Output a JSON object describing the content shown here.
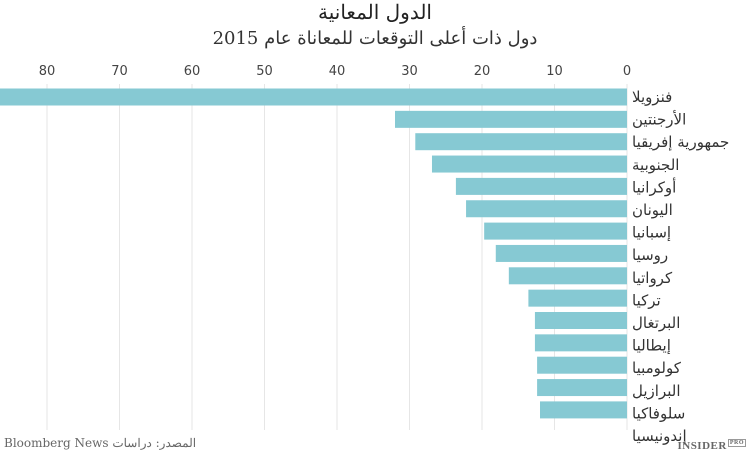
{
  "chart_data": {
    "type": "bar",
    "orientation": "horizontal",
    "title": "الدول المعانية",
    "subtitle": "دول ذات أعلى التوقعات للمعاناة عام 2015",
    "categories": [
      "فنزويلا",
      "الأرجنتين",
      "جمهورية إفريقيا الجنوبية",
      "أوكرانيا",
      "اليونان",
      "إسبانيا",
      "روسيا",
      "كرواتيا",
      "تركيا",
      "البرتغال",
      "إيطاليا",
      "كولومبيا",
      "البرازيل",
      "سلوفاكيا",
      "إندونيسيا"
    ],
    "label_lines": [
      "فنزويلا",
      "الأرجنتين",
      "جمهورية إفريقيا",
      "الجنوبية",
      "أوكرانيا",
      "اليونان",
      "إسبانيا",
      "روسيا",
      "كرواتيا",
      "تركيا",
      "البرتغال",
      "إيطاليا",
      "كولومبيا",
      "البرازيل",
      "سلوفاكيا",
      "إندونيسيا"
    ],
    "values": [
      87,
      32.0,
      29.2,
      26.9,
      23.6,
      22.2,
      19.7,
      18.1,
      16.3,
      13.6,
      12.7,
      12.7,
      12.4,
      12.4,
      12.0
    ],
    "xlim": [
      0,
      87
    ],
    "x_direction": "reversed",
    "ticks": [
      0,
      10,
      20,
      30,
      40,
      50,
      60,
      70,
      80
    ],
    "grid": true,
    "bar_color": "#86c9d3",
    "source": "المصدر: دراسات Bloomberg News",
    "logo": "INSIDER PRO"
  }
}
